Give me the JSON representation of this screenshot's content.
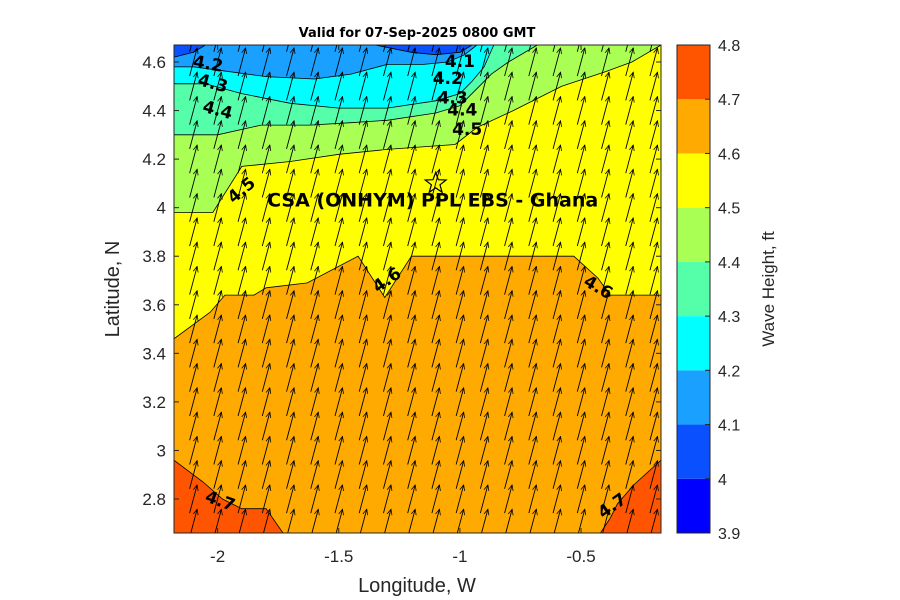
{
  "chart_data": {
    "type": "contour",
    "title": "Valid for 07-Sep-2025 0800 GMT",
    "xlabel": "Longitude, W",
    "ylabel": "Latitude, N",
    "xlim": [
      -2.18,
      -0.17
    ],
    "ylim": [
      2.66,
      4.67
    ],
    "xticks": [
      -2,
      -1.5,
      -1,
      -0.5
    ],
    "xtick_labels": [
      "-2",
      "-1.5",
      "-1",
      "-0.5"
    ],
    "yticks": [
      2.8,
      3,
      3.2,
      3.4,
      3.6,
      3.8,
      4,
      4.2,
      4.4,
      4.6
    ],
    "ytick_labels": [
      "2.8",
      "3",
      "3.2",
      "3.4",
      "3.6",
      "3.8",
      "4",
      "4.2",
      "4.4",
      "4.6"
    ],
    "colorbar": {
      "label": "Wave Height, ft",
      "levels": [
        3.9,
        4.0,
        4.1,
        4.2,
        4.3,
        4.4,
        4.5,
        4.6,
        4.7,
        4.8
      ],
      "tick_labels": [
        "3.9",
        "4",
        "4.1",
        "4.2",
        "4.3",
        "4.4",
        "4.5",
        "4.6",
        "4.7",
        "4.8"
      ],
      "colors": [
        "#0000ff",
        "#0a50ff",
        "#1aa0ff",
        "#00ffff",
        "#55ffaa",
        "#aaff55",
        "#ffff00",
        "#ffaa00",
        "#ff5500"
      ]
    },
    "bands": [
      {
        "level": 4.6,
        "color": "#ffaa00",
        "boundary": [
          [
            -2.18,
            3.46
          ],
          [
            -2.03,
            3.57
          ],
          [
            -1.97,
            3.64
          ],
          [
            -1.85,
            3.64
          ],
          [
            -1.8,
            3.67
          ],
          [
            -1.63,
            3.69
          ],
          [
            -1.42,
            3.8
          ],
          [
            -1.31,
            3.63
          ],
          [
            -1.2,
            3.8
          ],
          [
            -0.53,
            3.8
          ],
          [
            -0.43,
            3.71
          ],
          [
            -0.38,
            3.64
          ],
          [
            -0.17,
            3.64
          ]
        ]
      },
      {
        "level": 4.7,
        "color": "#ff5500",
        "polygons": [
          [
            [
              -2.18,
              2.66
            ],
            [
              -2.18,
              2.96
            ],
            [
              -2.06,
              2.87
            ],
            [
              -1.98,
              2.8
            ],
            [
              -1.9,
              2.76
            ],
            [
              -1.8,
              2.76
            ],
            [
              -1.73,
              2.66
            ]
          ],
          [
            [
              -0.17,
              2.66
            ],
            [
              -0.17,
              2.96
            ],
            [
              -0.28,
              2.86
            ],
            [
              -0.35,
              2.78
            ],
            [
              -0.38,
              2.72
            ],
            [
              -0.42,
              2.66
            ]
          ]
        ]
      },
      {
        "level": 4.5,
        "color": "#aaff55",
        "boundary": [
          [
            -2.18,
            3.98
          ],
          [
            -2.02,
            3.98
          ],
          [
            -1.9,
            4.17
          ],
          [
            -1.7,
            4.19
          ],
          [
            -1.5,
            4.22
          ],
          [
            -1.3,
            4.24
          ],
          [
            -1.02,
            4.26
          ],
          [
            -0.93,
            4.33
          ],
          [
            -0.78,
            4.4
          ],
          [
            -0.58,
            4.5
          ],
          [
            -0.4,
            4.56
          ],
          [
            -0.29,
            4.6
          ],
          [
            -0.17,
            4.67
          ]
        ]
      },
      {
        "level": 4.4,
        "color": "#55ffaa",
        "boundary": [
          [
            -2.18,
            4.3
          ],
          [
            -2.0,
            4.3
          ],
          [
            -1.82,
            4.34
          ],
          [
            -1.62,
            4.34
          ],
          [
            -1.45,
            4.35
          ],
          [
            -1.3,
            4.36
          ],
          [
            -1.1,
            4.39
          ],
          [
            -1.0,
            4.42
          ],
          [
            -0.93,
            4.49
          ],
          [
            -0.87,
            4.55
          ],
          [
            -0.8,
            4.6
          ],
          [
            -0.68,
            4.67
          ]
        ]
      },
      {
        "level": 4.3,
        "color": "#00ffff",
        "boundary": [
          [
            -2.18,
            4.51
          ],
          [
            -2.05,
            4.51
          ],
          [
            -1.9,
            4.47
          ],
          [
            -1.7,
            4.43
          ],
          [
            -1.5,
            4.41
          ],
          [
            -1.3,
            4.41
          ],
          [
            -1.1,
            4.44
          ],
          [
            -1.0,
            4.47
          ],
          [
            -0.95,
            4.52
          ],
          [
            -0.9,
            4.58
          ],
          [
            -0.86,
            4.67
          ]
        ]
      },
      {
        "level": 4.2,
        "color": "#1aa0ff",
        "boundary": [
          [
            -2.18,
            4.58
          ],
          [
            -2.1,
            4.58
          ],
          [
            -1.95,
            4.56
          ],
          [
            -1.8,
            4.54
          ],
          [
            -1.6,
            4.53
          ],
          [
            -1.45,
            4.55
          ],
          [
            -1.3,
            4.59
          ],
          [
            -1.15,
            4.59
          ],
          [
            -1.05,
            4.6
          ],
          [
            -0.98,
            4.63
          ],
          [
            -0.93,
            4.67
          ]
        ]
      },
      {
        "level": 4.1,
        "color": "#0a50ff",
        "boundary": [
          [
            -2.18,
            4.62
          ],
          [
            -2.1,
            4.64
          ],
          [
            -2.05,
            4.67
          ],
          [
            -1.35,
            4.67
          ],
          [
            -1.2,
            4.64
          ],
          [
            -1.1,
            4.63
          ],
          [
            -1.0,
            4.64
          ],
          [
            -0.95,
            4.67
          ]
        ]
      }
    ],
    "contour_labels": [
      {
        "text": "4.7",
        "lon": -1.99,
        "lat": 2.79,
        "angle": 20
      },
      {
        "text": "4.7",
        "lon": -0.37,
        "lat": 2.77,
        "angle": -35
      },
      {
        "text": "4.6",
        "lon": -1.3,
        "lat": 3.7,
        "angle": -35
      },
      {
        "text": "4.6",
        "lon": -0.43,
        "lat": 3.67,
        "angle": 30
      },
      {
        "text": "4.5",
        "lon": -1.9,
        "lat": 4.07,
        "angle": -40
      },
      {
        "text": "4.5",
        "lon": -0.97,
        "lat": 4.32,
        "angle": 0
      },
      {
        "text": "4.4",
        "lon": -2.0,
        "lat": 4.4,
        "angle": 15
      },
      {
        "text": "4.4",
        "lon": -0.99,
        "lat": 4.4,
        "angle": 0
      },
      {
        "text": "4.3",
        "lon": -2.02,
        "lat": 4.51,
        "angle": 15
      },
      {
        "text": "4.3",
        "lon": -1.03,
        "lat": 4.45,
        "angle": 0
      },
      {
        "text": "4.2",
        "lon": -2.04,
        "lat": 4.59,
        "angle": 10
      },
      {
        "text": "4.2",
        "lon": -1.05,
        "lat": 4.53,
        "angle": 0
      },
      {
        "text": "4.1",
        "lon": -1.0,
        "lat": 4.6,
        "angle": 0
      }
    ],
    "site": {
      "label": "CSA (ONHYM) PPL EBS  - Ghana",
      "lon": -1.1,
      "lat": 4.1
    },
    "vectors": {
      "lon_start": -2.2,
      "lon_step": 0.1,
      "lat_start": 2.7,
      "lat_step": 0.1,
      "direction_deg": 15,
      "length": 0.12
    }
  }
}
